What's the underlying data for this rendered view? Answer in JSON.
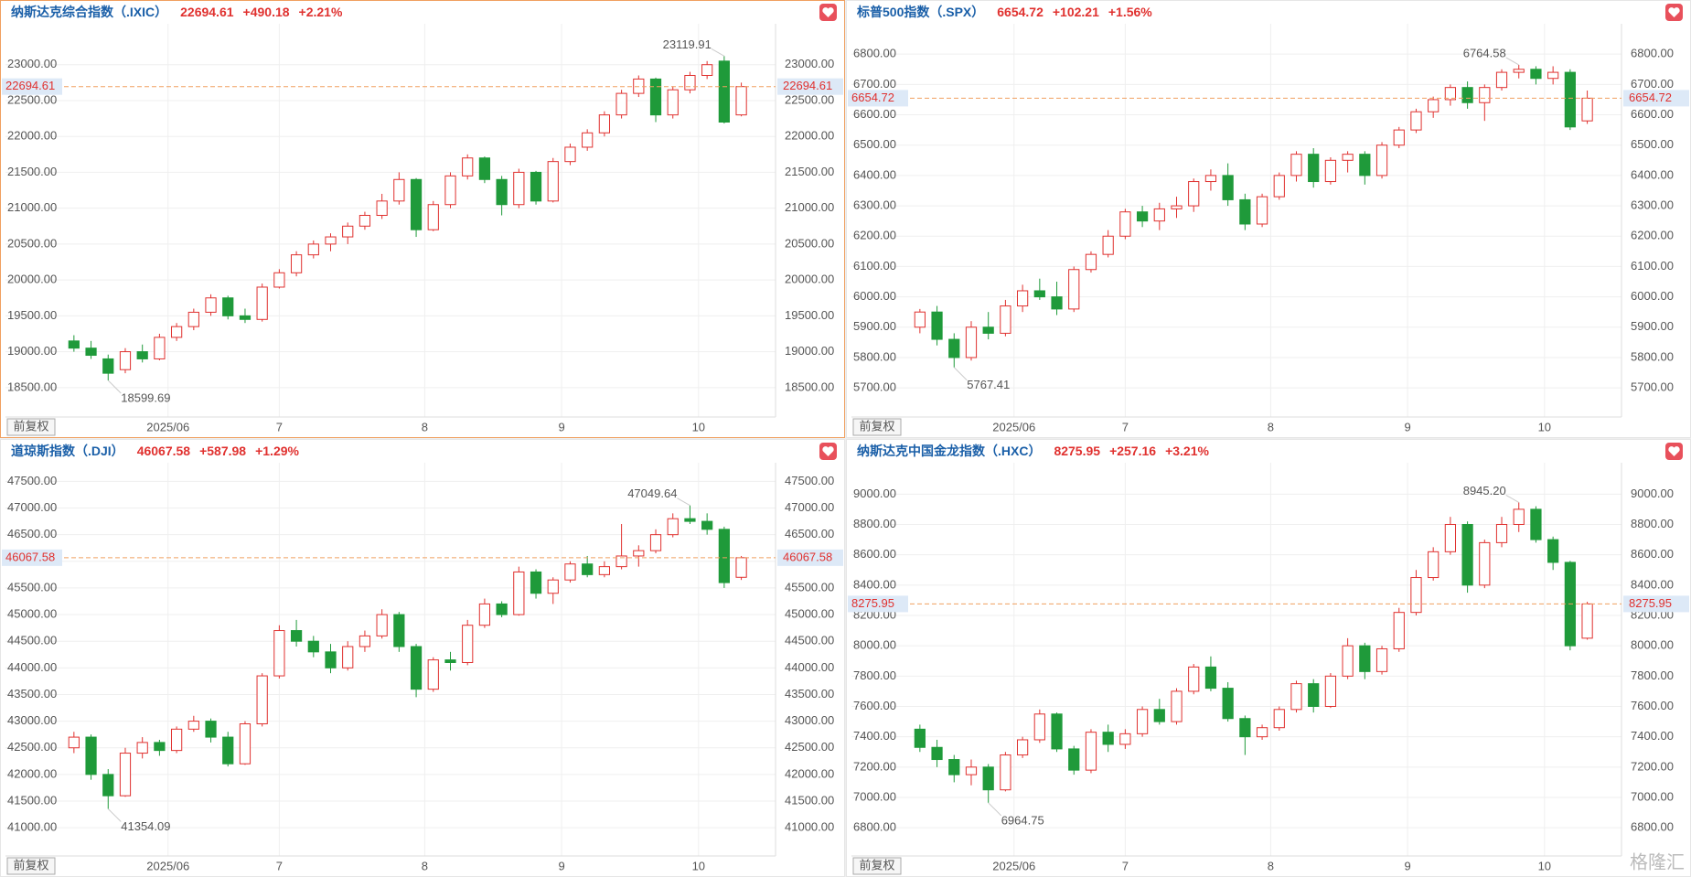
{
  "watermark": "格隆汇",
  "chart_data": [
    {
      "type": "candlestick",
      "title": "纳斯达克综合指数（.IXIC）",
      "price": 22694.61,
      "change": "+490.18",
      "change_pct": "+2.21%",
      "selected": true,
      "adjust_button": "前复权",
      "up_color": "#e0312f",
      "down_color": "#1f9a3a",
      "price_line_color": "#f0a060",
      "grid": true,
      "open": [
        19150,
        19050,
        18900,
        18750,
        19000,
        18900,
        19200,
        19350,
        19550,
        19750,
        19500,
        19450,
        19900,
        20100,
        20350,
        20500,
        20600,
        20750,
        20900,
        21100,
        21400,
        20700,
        21050,
        21450,
        21700,
        21400,
        21050,
        21500,
        21100,
        21650,
        21850,
        22050,
        22300,
        22600,
        22800,
        22300,
        22650,
        22850,
        23050,
        22300
      ],
      "high": [
        19230,
        19150,
        18960,
        19050,
        19100,
        19250,
        19400,
        19600,
        19800,
        19780,
        19600,
        19950,
        20150,
        20400,
        20550,
        20650,
        20800,
        20950,
        21200,
        21500,
        21420,
        21100,
        21500,
        21750,
        21720,
        21450,
        21550,
        21520,
        21700,
        21900,
        22100,
        22350,
        22650,
        22850,
        22820,
        22700,
        22900,
        23050,
        23119.91,
        22750
      ],
      "low": [
        19000,
        18900,
        18599.69,
        18700,
        18850,
        18880,
        19150,
        19300,
        19500,
        19450,
        19400,
        19420,
        19880,
        20050,
        20300,
        20400,
        20500,
        20700,
        20850,
        21050,
        20600,
        20680,
        21000,
        21400,
        21350,
        20900,
        21000,
        21050,
        21080,
        21600,
        21800,
        22000,
        22250,
        22550,
        22200,
        22250,
        22600,
        22800,
        22180,
        22280
      ],
      "close": [
        19050,
        18950,
        18700,
        19000,
        18900,
        19200,
        19350,
        19550,
        19750,
        19500,
        19450,
        19900,
        20100,
        20350,
        20500,
        20600,
        20750,
        20900,
        21100,
        21400,
        20700,
        21050,
        21450,
        21700,
        21400,
        21050,
        21500,
        21100,
        21650,
        21850,
        22050,
        22300,
        22600,
        22800,
        22300,
        22650,
        22850,
        23000,
        22200,
        22694.61
      ],
      "annotations": [
        {
          "value": 23119.91,
          "label": "23119.91"
        },
        {
          "value": 18599.69,
          "label": "18599.69"
        }
      ],
      "xlim": [
        -4,
        41
      ],
      "xticks": [
        {
          "value": 5.5,
          "label": "2025/06"
        },
        {
          "value": 12,
          "label": "7"
        },
        {
          "value": 20.5,
          "label": "8"
        },
        {
          "value": 28.5,
          "label": "9"
        },
        {
          "value": 36.5,
          "label": "10"
        }
      ],
      "ylim": [
        18090,
        23570
      ],
      "yticks": [
        {
          "value": 18500,
          "label": "18500.00"
        },
        {
          "value": 19000,
          "label": "19000.00"
        },
        {
          "value": 19500,
          "label": "19500.00"
        },
        {
          "value": 20000,
          "label": "20000.00"
        },
        {
          "value": 20500,
          "label": "20500.00"
        },
        {
          "value": 21000,
          "label": "21000.00"
        },
        {
          "value": 21500,
          "label": "21500.00"
        },
        {
          "value": 22000,
          "label": "22000.00"
        },
        {
          "value": 22500,
          "label": "22500.00"
        },
        {
          "value": 23000,
          "label": "23000.00"
        }
      ]
    },
    {
      "type": "candlestick",
      "title": "标普500指数（.SPX）",
      "price": 6654.72,
      "change": "+102.21",
      "change_pct": "+1.56%",
      "selected": false,
      "adjust_button": "前复权",
      "up_color": "#e0312f",
      "down_color": "#1f9a3a",
      "price_line_color": "#f0a060",
      "grid": true,
      "open": [
        5900,
        5950,
        5860,
        5800,
        5900,
        5880,
        5970,
        6020,
        6000,
        5960,
        6090,
        6140,
        6200,
        6280,
        6250,
        6290,
        6300,
        6380,
        6400,
        6320,
        6240,
        6330,
        6400,
        6470,
        6380,
        6450,
        6470,
        6400,
        6500,
        6550,
        6610,
        6650,
        6690,
        6640,
        6690,
        6740,
        6750,
        6720,
        6740,
        6580
      ],
      "high": [
        5960,
        5970,
        5880,
        5920,
        5950,
        5990,
        6040,
        6060,
        6050,
        6100,
        6150,
        6220,
        6290,
        6300,
        6310,
        6330,
        6390,
        6420,
        6440,
        6340,
        6340,
        6410,
        6480,
        6490,
        6460,
        6480,
        6480,
        6510,
        6560,
        6620,
        6660,
        6700,
        6710,
        6700,
        6750,
        6764.58,
        6760,
        6760,
        6750,
        6680
      ],
      "low": [
        5880,
        5840,
        5767.41,
        5790,
        5860,
        5870,
        5950,
        5990,
        5940,
        5950,
        6080,
        6130,
        6190,
        6230,
        6220,
        6260,
        6280,
        6350,
        6300,
        6220,
        6230,
        6320,
        6380,
        6360,
        6370,
        6410,
        6370,
        6390,
        6490,
        6540,
        6590,
        6630,
        6620,
        6580,
        6680,
        6720,
        6700,
        6700,
        6550,
        6570
      ],
      "close": [
        5950,
        5860,
        5800,
        5900,
        5880,
        5970,
        6020,
        6000,
        5960,
        6090,
        6140,
        6200,
        6280,
        6250,
        6290,
        6300,
        6380,
        6400,
        6320,
        6240,
        6330,
        6400,
        6470,
        6380,
        6450,
        6470,
        6400,
        6500,
        6550,
        6610,
        6650,
        6690,
        6640,
        6690,
        6740,
        6750,
        6720,
        6740,
        6560,
        6654.72
      ],
      "annotations": [
        {
          "value": 6764.58,
          "label": "6764.58"
        },
        {
          "value": 5767.41,
          "label": "5767.41"
        }
      ],
      "xlim": [
        -4,
        41
      ],
      "xticks": [
        {
          "value": 5.5,
          "label": "2025/06"
        },
        {
          "value": 12,
          "label": "7"
        },
        {
          "value": 20.5,
          "label": "8"
        },
        {
          "value": 28.5,
          "label": "9"
        },
        {
          "value": 36.5,
          "label": "10"
        }
      ],
      "ylim": [
        5604,
        6900
      ],
      "yticks": [
        {
          "value": 5700,
          "label": "5700.00"
        },
        {
          "value": 5800,
          "label": "5800.00"
        },
        {
          "value": 5900,
          "label": "5900.00"
        },
        {
          "value": 6000,
          "label": "6000.00"
        },
        {
          "value": 6100,
          "label": "6100.00"
        },
        {
          "value": 6200,
          "label": "6200.00"
        },
        {
          "value": 6300,
          "label": "6300.00"
        },
        {
          "value": 6400,
          "label": "6400.00"
        },
        {
          "value": 6500,
          "label": "6500.00"
        },
        {
          "value": 6600,
          "label": "6600.00"
        },
        {
          "value": 6700,
          "label": "6700.00"
        },
        {
          "value": 6800,
          "label": "6800.00"
        }
      ]
    },
    {
      "type": "candlestick",
      "title": "道琼斯指数（.DJI）",
      "price": 46067.58,
      "change": "+587.98",
      "change_pct": "+1.29%",
      "selected": false,
      "adjust_button": "前复权",
      "up_color": "#e0312f",
      "down_color": "#1f9a3a",
      "price_line_color": "#f0a060",
      "grid": true,
      "open": [
        42500,
        42700,
        42000,
        41600,
        42400,
        42600,
        42450,
        42850,
        43000,
        42700,
        42200,
        42950,
        43850,
        44700,
        44500,
        44300,
        44000,
        44400,
        44600,
        45000,
        44400,
        43600,
        44150,
        44100,
        44800,
        45200,
        45000,
        45800,
        45400,
        45650,
        45950,
        45750,
        45900,
        46100,
        46200,
        46500,
        46800,
        46750,
        46600,
        45700
      ],
      "high": [
        42800,
        42750,
        42100,
        42500,
        42700,
        42650,
        42900,
        43100,
        43050,
        42800,
        43000,
        43900,
        44800,
        44900,
        44600,
        44450,
        44500,
        44700,
        45100,
        45050,
        44450,
        44200,
        44300,
        44900,
        45300,
        45250,
        45900,
        45850,
        45700,
        46000,
        46100,
        46000,
        46700,
        46300,
        46600,
        46900,
        47049.64,
        46900,
        46650,
        46100
      ],
      "low": [
        42400,
        41900,
        41354.09,
        41580,
        42300,
        42350,
        42400,
        42800,
        42600,
        42150,
        42180,
        42900,
        43800,
        44400,
        44200,
        43900,
        43950,
        44300,
        44550,
        44300,
        43450,
        43550,
        43950,
        44050,
        44750,
        44950,
        44980,
        45300,
        45200,
        45600,
        45700,
        45700,
        45850,
        45900,
        46150,
        46450,
        46700,
        46500,
        45500,
        45650
      ],
      "close": [
        42700,
        42000,
        41600,
        42400,
        42600,
        42450,
        42850,
        43000,
        42700,
        42200,
        42950,
        43850,
        44700,
        44500,
        44300,
        44000,
        44400,
        44600,
        45000,
        44400,
        43600,
        44150,
        44100,
        44800,
        45200,
        45000,
        45800,
        45400,
        45650,
        45950,
        45750,
        45900,
        46100,
        46200,
        46500,
        46800,
        46750,
        46600,
        45600,
        46067.58
      ],
      "annotations": [
        {
          "value": 47049.64,
          "label": "47049.64"
        },
        {
          "value": 41354.09,
          "label": "41354.09"
        }
      ],
      "xlim": [
        -4,
        41
      ],
      "xticks": [
        {
          "value": 5.5,
          "label": "2025/06"
        },
        {
          "value": 12,
          "label": "7"
        },
        {
          "value": 20.5,
          "label": "8"
        },
        {
          "value": 28.5,
          "label": "9"
        },
        {
          "value": 36.5,
          "label": "10"
        }
      ],
      "ylim": [
        40470,
        47850
      ],
      "yticks": [
        {
          "value": 41000,
          "label": "41000.00"
        },
        {
          "value": 41500,
          "label": "41500.00"
        },
        {
          "value": 42000,
          "label": "42000.00"
        },
        {
          "value": 42500,
          "label": "42500.00"
        },
        {
          "value": 43000,
          "label": "43000.00"
        },
        {
          "value": 43500,
          "label": "43500.00"
        },
        {
          "value": 44000,
          "label": "44000.00"
        },
        {
          "value": 44500,
          "label": "44500.00"
        },
        {
          "value": 45000,
          "label": "45000.00"
        },
        {
          "value": 45500,
          "label": "45500.00"
        },
        {
          "value": 46000,
          "label": "46000.00"
        },
        {
          "value": 46500,
          "label": "46500.00"
        },
        {
          "value": 47000,
          "label": "47000.00"
        },
        {
          "value": 47500,
          "label": "47500.00"
        }
      ]
    },
    {
      "type": "candlestick",
      "title": "纳斯达克中国金龙指数（.HXC）",
      "price": 8275.95,
      "change": "+257.16",
      "change_pct": "+3.21%",
      "selected": false,
      "adjust_button": "前复权",
      "up_color": "#e0312f",
      "down_color": "#1f9a3a",
      "price_line_color": "#f0a060",
      "grid": true,
      "open": [
        7450,
        7330,
        7250,
        7150,
        7200,
        7050,
        7280,
        7380,
        7550,
        7320,
        7180,
        7430,
        7350,
        7420,
        7580,
        7500,
        7700,
        7860,
        7720,
        7520,
        7400,
        7460,
        7580,
        7750,
        7600,
        7800,
        8000,
        7830,
        7980,
        8220,
        8450,
        8620,
        8800,
        8400,
        8680,
        8800,
        8900,
        8700,
        8550,
        8050
      ],
      "high": [
        7480,
        7380,
        7280,
        7250,
        7220,
        7300,
        7400,
        7580,
        7560,
        7340,
        7450,
        7480,
        7450,
        7600,
        7650,
        7720,
        7880,
        7930,
        7760,
        7540,
        7480,
        7600,
        7770,
        7780,
        7820,
        8050,
        8020,
        8000,
        8250,
        8500,
        8650,
        8850,
        8820,
        8700,
        8850,
        8945.2,
        8920,
        8720,
        8560,
        8290
      ],
      "low": [
        7300,
        7200,
        7100,
        7080,
        6964.75,
        7040,
        7260,
        7360,
        7300,
        7150,
        7160,
        7300,
        7320,
        7400,
        7480,
        7480,
        7680,
        7700,
        7500,
        7280,
        7380,
        7440,
        7560,
        7560,
        7590,
        7780,
        7780,
        7810,
        7960,
        8200,
        8430,
        8600,
        8350,
        8380,
        8650,
        8750,
        8680,
        8500,
        7970,
        8040
      ],
      "close": [
        7330,
        7250,
        7150,
        7200,
        7050,
        7280,
        7380,
        7550,
        7320,
        7180,
        7430,
        7350,
        7420,
        7580,
        7500,
        7700,
        7860,
        7720,
        7520,
        7400,
        7460,
        7580,
        7750,
        7600,
        7800,
        8000,
        7830,
        7980,
        8220,
        8450,
        8620,
        8800,
        8400,
        8680,
        8800,
        8900,
        8700,
        8550,
        8000,
        8275.95
      ],
      "annotations": [
        {
          "value": 8945.2,
          "label": "8945.20"
        },
        {
          "value": 6964.75,
          "label": "6964.75"
        }
      ],
      "xlim": [
        -4,
        41
      ],
      "xticks": [
        {
          "value": 5.5,
          "label": "2025/06"
        },
        {
          "value": 12,
          "label": "7"
        },
        {
          "value": 20.5,
          "label": "8"
        },
        {
          "value": 28.5,
          "label": "9"
        },
        {
          "value": 36.5,
          "label": "10"
        }
      ],
      "ylim": [
        6614,
        9207
      ],
      "yticks": [
        {
          "value": 6800,
          "label": "6800.00"
        },
        {
          "value": 7000,
          "label": "7000.00"
        },
        {
          "value": 7200,
          "label": "7200.00"
        },
        {
          "value": 7400,
          "label": "7400.00"
        },
        {
          "value": 7600,
          "label": "7600.00"
        },
        {
          "value": 7800,
          "label": "7800.00"
        },
        {
          "value": 8000,
          "label": "8000.00"
        },
        {
          "value": 8200,
          "label": "8200.00"
        },
        {
          "value": 8400,
          "label": "8400.00"
        },
        {
          "value": 8600,
          "label": "8600.00"
        },
        {
          "value": 8800,
          "label": "8800.00"
        },
        {
          "value": 9000,
          "label": "9000.00"
        }
      ]
    }
  ]
}
